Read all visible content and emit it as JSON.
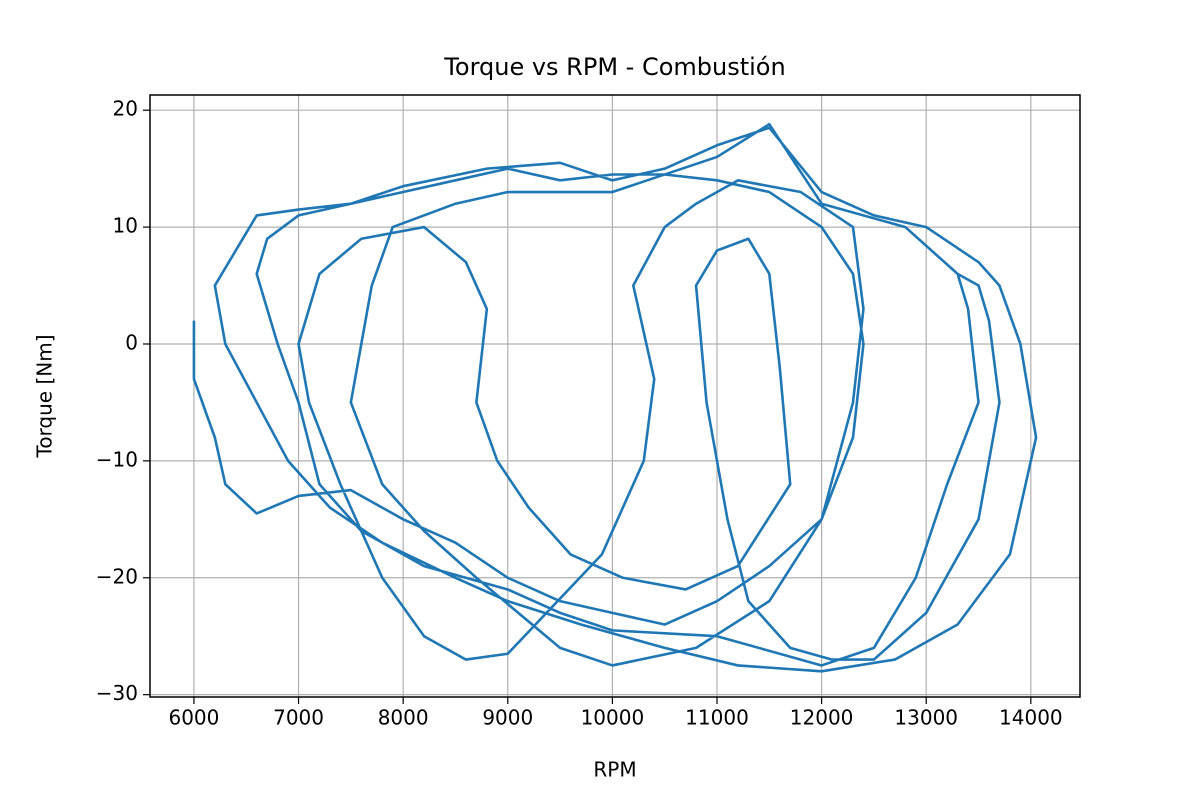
{
  "chart_data": {
    "type": "line",
    "title": "Torque vs RPM - Combustión",
    "x_label": "RPM",
    "y_label": "Torque [Nm]",
    "x": [
      6000,
      6000,
      6200,
      6300,
      6600,
      7000,
      7500,
      8000,
      8500,
      9000,
      9500,
      10000,
      10500,
      11000,
      11500,
      12000,
      12300,
      12400,
      12300,
      12000,
      11500,
      11000,
      10500,
      10000,
      9500,
      9000,
      8500,
      8000,
      7500,
      7000,
      6600,
      6400,
      6200,
      6300,
      6600,
      6900,
      7300,
      7800,
      8500,
      9000,
      9700,
      10500,
      11200,
      12000,
      12700,
      13300,
      13800,
      14050,
      13900,
      13700,
      13500,
      13000,
      12500,
      12000,
      11500,
      11000,
      10500,
      10000,
      9500,
      8800,
      8000,
      7500,
      7000,
      6700,
      6600,
      6800,
      7000,
      7200,
      7600,
      8200,
      9000,
      9500,
      10000,
      11000,
      12000,
      12500,
      12900,
      13200,
      13500,
      13400,
      13300,
      12800,
      12000,
      11500,
      11000,
      10000,
      9000,
      8500,
      7900,
      7700,
      7500,
      7800,
      8200,
      8700,
      9500,
      10000,
      10800,
      11500,
      12000,
      12300,
      12400,
      12300,
      11800,
      11200,
      10800,
      10500,
      10200,
      10400,
      10300,
      9900,
      9000,
      8600,
      8200,
      7800,
      7400,
      7100,
      7000,
      7200,
      7600,
      8200,
      8600,
      8800,
      8700,
      8900,
      9200,
      9600,
      10100,
      10700,
      11200,
      11700,
      11600,
      11500,
      11300,
      11000,
      10800,
      10900,
      11100,
      11300,
      11700,
      12100,
      12500,
      13000,
      13500,
      13700,
      13600,
      13500,
      13300
    ],
    "series": [
      {
        "color": "#1f77b4",
        "values": [
          2,
          -3,
          -8,
          -12,
          -14.5,
          -13,
          -12.5,
          -15,
          -17,
          -20,
          -22,
          -23,
          -24,
          -22,
          -19,
          -15,
          -8,
          0,
          6,
          10,
          13,
          14,
          14.5,
          14.5,
          14,
          15,
          14,
          13,
          12,
          11.5,
          11,
          8,
          5,
          0,
          -5,
          -10,
          -14,
          -17,
          -20,
          -22,
          -24,
          -26,
          -27.5,
          -28,
          -27,
          -24,
          -18,
          -8,
          0,
          5,
          7,
          10,
          11,
          13,
          18.5,
          17,
          15,
          14,
          15.5,
          15,
          13.5,
          12,
          11,
          9,
          6,
          0,
          -5,
          -12,
          -16,
          -19,
          -21,
          -23,
          -24.5,
          -25,
          -27.5,
          -26,
          -20,
          -12,
          -5,
          3,
          6,
          10,
          12,
          18.8,
          16,
          13,
          13,
          12,
          10,
          5,
          -5,
          -12,
          -16,
          -20,
          -26,
          -27.5,
          -26,
          -22,
          -15,
          -5,
          3,
          10,
          13,
          14,
          12,
          10,
          5,
          -3,
          -10,
          -18,
          -26.5,
          -27,
          -25,
          -20,
          -12,
          -5,
          0,
          6,
          9,
          10,
          7,
          3,
          -5,
          -10,
          -14,
          -18,
          -20,
          -21,
          -19,
          -12,
          -2,
          6,
          9,
          8,
          5,
          -5,
          -15,
          -22,
          -26,
          -27,
          -27,
          -23,
          -15,
          -5,
          2,
          5,
          6
        ]
      }
    ],
    "xlim": [
      5580,
      14470
    ],
    "ylim": [
      -30.2,
      21.3
    ],
    "xticks": [
      6000,
      7000,
      8000,
      9000,
      10000,
      11000,
      12000,
      13000,
      14000
    ],
    "yticks": [
      {
        "value": -30,
        "label": "−30"
      },
      {
        "value": -20,
        "label": "−20"
      },
      {
        "value": -10,
        "label": "−10"
      },
      0,
      10,
      20
    ],
    "grid": true
  }
}
